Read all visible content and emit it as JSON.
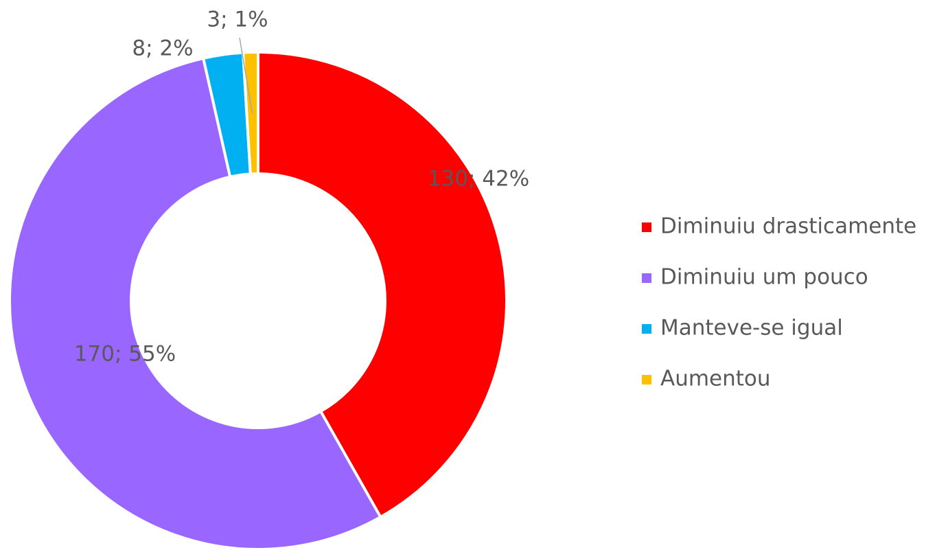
{
  "chart_data": {
    "type": "donut",
    "categories": [
      "Diminuiu drasticamente",
      "Diminuiu um pouco",
      "Manteve-se igual",
      "Aumentou"
    ],
    "values": [
      130,
      170,
      8,
      3
    ],
    "value_labels": [
      "130; 42%",
      "170; 55%",
      "8; 2%",
      "3; 1%"
    ],
    "colors": [
      "#ff0000",
      "#9966ff",
      "#00b0f0",
      "#ffc000"
    ],
    "legend": "right"
  }
}
